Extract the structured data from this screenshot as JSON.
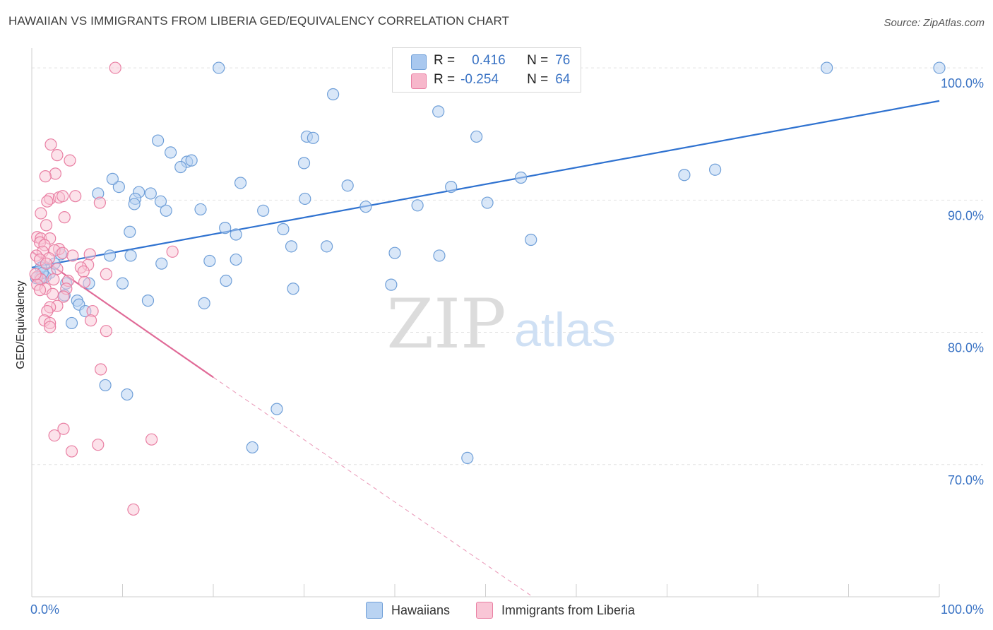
{
  "header": {
    "title": "HAWAIIAN VS IMMIGRANTS FROM LIBERIA GED/EQUIVALENCY CORRELATION CHART",
    "source": "Source: ZipAtlas.com"
  },
  "watermark": {
    "zip": "ZIP",
    "atlas": "atlas"
  },
  "legend": {
    "rows": [
      {
        "r_label": "R =",
        "r_value": "0.416",
        "n_label": "N =",
        "n_value": "76",
        "color": "#a9c8ef",
        "border": "#6f9fd8"
      },
      {
        "r_label": "R =",
        "r_value": "-0.254",
        "n_label": "N =",
        "n_value": "64",
        "color": "#f7b7cb",
        "border": "#e97fa3"
      }
    ]
  },
  "bottom_legend": [
    {
      "label": "Hawaiians",
      "color": "#b9d3f2",
      "border": "#6f9fd8"
    },
    {
      "label": "Immigrants from Liberia",
      "color": "#f9c6d6",
      "border": "#e97fa3"
    }
  ],
  "chart_data": {
    "type": "scatter",
    "title": "HAWAIIAN VS IMMIGRANTS FROM LIBERIA GED/EQUIVALENCY CORRELATION CHART",
    "xlabel": "",
    "ylabel": "GED/Equivalency",
    "xlim": [
      0,
      100
    ],
    "ylim": [
      60.0,
      101.5
    ],
    "x_tick_labels": [
      "0.0%",
      "100.0%"
    ],
    "y_ticks": [
      70,
      80,
      90,
      100
    ],
    "y_tick_labels": [
      "70.0%",
      "80.0%",
      "90.0%",
      "100.0%"
    ],
    "grid": true,
    "colors": {
      "hawaiians_fill": "#b9d3f2",
      "hawaiians_stroke": "#6f9fd8",
      "hawaiians_line": "#2f72d0",
      "liberia_fill": "#f9c6d6",
      "liberia_stroke": "#e97fa3",
      "liberia_line": "#e06a97",
      "tick_label": "#3a73c4",
      "grid": "#e2e2e2"
    },
    "series": [
      {
        "name": "Hawaiians",
        "trend": {
          "x": [
            0,
            100
          ],
          "y": [
            84.9,
            97.5
          ]
        },
        "points": [
          [
            20.6,
            100.0
          ],
          [
            87.6,
            100.0
          ],
          [
            100.0,
            100.0
          ],
          [
            33.2,
            98.0
          ],
          [
            44.8,
            96.7
          ],
          [
            13.9,
            94.5
          ],
          [
            30.3,
            94.8
          ],
          [
            31.0,
            94.7
          ],
          [
            49.0,
            94.8
          ],
          [
            15.3,
            93.6
          ],
          [
            17.1,
            92.9
          ],
          [
            17.6,
            93.0
          ],
          [
            16.4,
            92.5
          ],
          [
            30.0,
            92.8
          ],
          [
            11.8,
            90.6
          ],
          [
            11.4,
            90.1
          ],
          [
            7.3,
            90.5
          ],
          [
            9.6,
            91.0
          ],
          [
            13.1,
            90.5
          ],
          [
            14.2,
            89.9
          ],
          [
            11.3,
            89.7
          ],
          [
            23.0,
            91.3
          ],
          [
            34.8,
            91.1
          ],
          [
            46.2,
            91.0
          ],
          [
            8.9,
            91.6
          ],
          [
            71.9,
            91.9
          ],
          [
            75.3,
            92.3
          ],
          [
            53.9,
            91.7
          ],
          [
            30.1,
            90.1
          ],
          [
            36.8,
            89.5
          ],
          [
            42.5,
            89.6
          ],
          [
            50.2,
            89.8
          ],
          [
            18.6,
            89.3
          ],
          [
            14.8,
            89.2
          ],
          [
            25.5,
            89.2
          ],
          [
            10.8,
            87.6
          ],
          [
            21.3,
            87.9
          ],
          [
            22.5,
            87.4
          ],
          [
            27.7,
            87.8
          ],
          [
            55.0,
            87.0
          ],
          [
            28.6,
            86.5
          ],
          [
            32.5,
            86.5
          ],
          [
            40.0,
            86.0
          ],
          [
            44.9,
            85.8
          ],
          [
            8.6,
            85.8
          ],
          [
            10.9,
            85.8
          ],
          [
            14.3,
            85.2
          ],
          [
            19.6,
            85.4
          ],
          [
            22.5,
            85.5
          ],
          [
            3.2,
            85.9
          ],
          [
            1.3,
            85.0
          ],
          [
            2.0,
            84.5
          ],
          [
            1.5,
            84.2
          ],
          [
            0.9,
            84.1
          ],
          [
            0.5,
            84.1
          ],
          [
            3.8,
            83.7
          ],
          [
            6.3,
            83.7
          ],
          [
            10.0,
            83.7
          ],
          [
            21.4,
            83.9
          ],
          [
            28.8,
            83.3
          ],
          [
            39.6,
            83.6
          ],
          [
            5.0,
            82.4
          ],
          [
            12.8,
            82.4
          ],
          [
            19.0,
            82.2
          ],
          [
            3.6,
            82.8
          ],
          [
            5.2,
            82.1
          ],
          [
            5.9,
            81.6
          ],
          [
            4.4,
            80.7
          ],
          [
            8.1,
            76.0
          ],
          [
            10.5,
            75.3
          ],
          [
            27.0,
            74.2
          ],
          [
            24.3,
            71.3
          ],
          [
            48.0,
            70.5
          ],
          [
            1.0,
            84.9
          ],
          [
            1.2,
            84.5
          ],
          [
            2.5,
            85.2
          ]
        ]
      },
      {
        "name": "Immigrants from Liberia",
        "trend_solid": {
          "x": [
            0,
            20.0
          ],
          "y": [
            86.1,
            76.6
          ]
        },
        "trend_dashed": {
          "x": [
            20.0,
            55.2
          ],
          "y": [
            76.6,
            60.0
          ]
        },
        "points": [
          [
            9.2,
            100.0
          ],
          [
            2.1,
            94.2
          ],
          [
            2.8,
            93.4
          ],
          [
            4.2,
            93.0
          ],
          [
            2.6,
            92.0
          ],
          [
            1.5,
            91.8
          ],
          [
            2.0,
            90.1
          ],
          [
            1.7,
            89.9
          ],
          [
            3.0,
            90.2
          ],
          [
            3.4,
            90.3
          ],
          [
            4.8,
            90.3
          ],
          [
            7.5,
            89.8
          ],
          [
            1.0,
            89.0
          ],
          [
            3.6,
            88.7
          ],
          [
            1.6,
            88.1
          ],
          [
            0.6,
            87.2
          ],
          [
            1.0,
            87.1
          ],
          [
            2.0,
            87.1
          ],
          [
            0.9,
            86.8
          ],
          [
            1.4,
            86.6
          ],
          [
            3.0,
            86.3
          ],
          [
            1.2,
            86.1
          ],
          [
            0.5,
            85.8
          ],
          [
            2.5,
            86.2
          ],
          [
            3.4,
            86.0
          ],
          [
            6.4,
            85.9
          ],
          [
            15.5,
            86.1
          ],
          [
            4.5,
            85.8
          ],
          [
            1.9,
            85.6
          ],
          [
            0.9,
            85.5
          ],
          [
            1.6,
            85.2
          ],
          [
            6.2,
            85.1
          ],
          [
            2.8,
            84.8
          ],
          [
            5.4,
            84.9
          ],
          [
            5.7,
            84.6
          ],
          [
            8.2,
            84.4
          ],
          [
            0.6,
            84.2
          ],
          [
            1.0,
            84.0
          ],
          [
            2.4,
            84.0
          ],
          [
            4.0,
            83.9
          ],
          [
            5.8,
            83.8
          ],
          [
            0.6,
            83.6
          ],
          [
            1.5,
            83.3
          ],
          [
            0.9,
            83.2
          ],
          [
            3.8,
            83.3
          ],
          [
            2.3,
            82.9
          ],
          [
            3.5,
            82.7
          ],
          [
            2.8,
            82.0
          ],
          [
            2.0,
            81.9
          ],
          [
            1.7,
            81.6
          ],
          [
            6.7,
            81.6
          ],
          [
            1.4,
            80.9
          ],
          [
            2.0,
            80.7
          ],
          [
            2.0,
            80.4
          ],
          [
            6.5,
            80.9
          ],
          [
            8.2,
            80.1
          ],
          [
            7.6,
            77.2
          ],
          [
            3.5,
            72.7
          ],
          [
            2.5,
            72.2
          ],
          [
            4.4,
            71.0
          ],
          [
            7.3,
            71.5
          ],
          [
            13.2,
            71.9
          ],
          [
            11.2,
            66.6
          ],
          [
            0.4,
            84.4
          ]
        ]
      }
    ]
  }
}
